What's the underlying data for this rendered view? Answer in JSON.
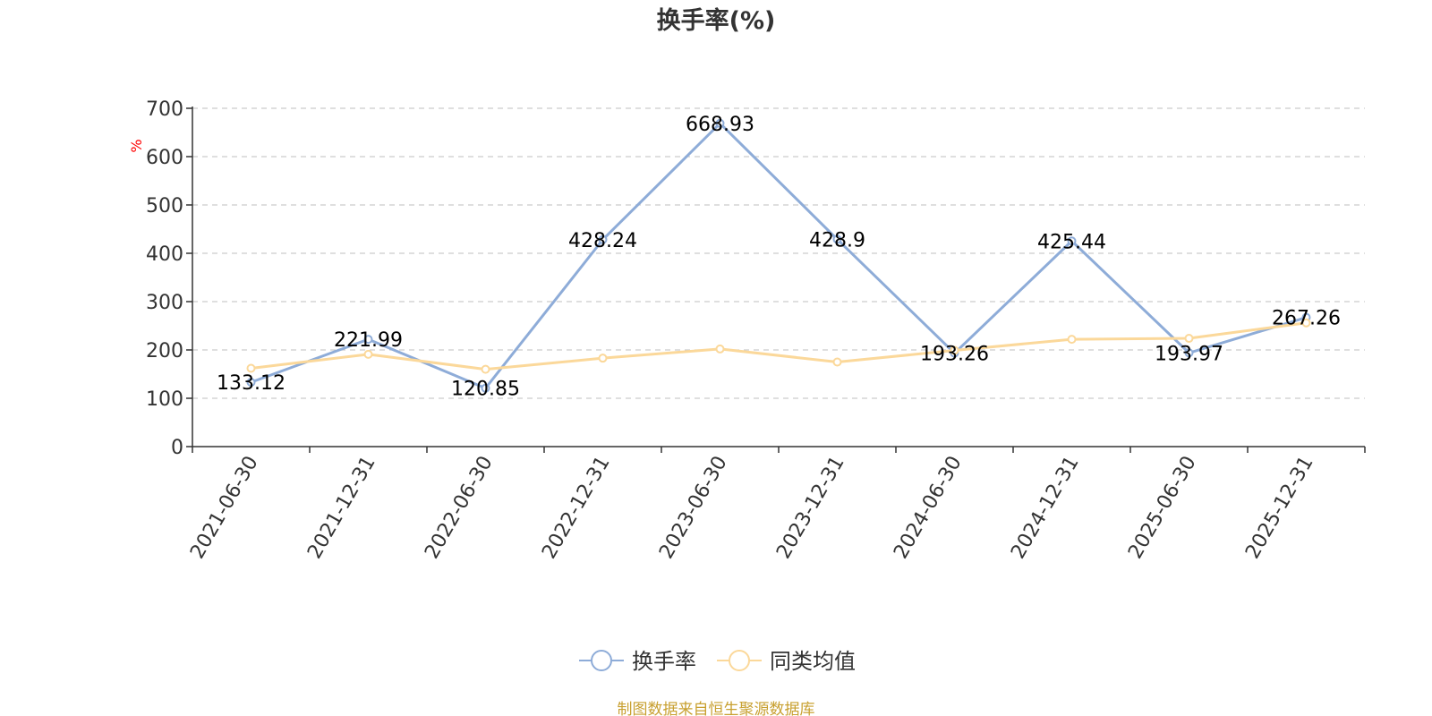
{
  "chart_data": {
    "type": "line",
    "title": "换手率(%)",
    "ylabel": "%",
    "ylim": [
      0,
      700
    ],
    "yticks": [
      0,
      100,
      200,
      300,
      400,
      500,
      600,
      700
    ],
    "categories": [
      "2021-06-30",
      "2021-12-31",
      "2022-06-30",
      "2022-12-31",
      "2023-06-30",
      "2023-12-31",
      "2024-06-30",
      "2024-12-31",
      "2025-06-30",
      "2025-12-31"
    ],
    "series": [
      {
        "name": "换手率",
        "color": "#8eacd8",
        "values": [
          133.12,
          221.99,
          120.85,
          428.24,
          668.93,
          428.9,
          193.26,
          425.44,
          193.97,
          267.26
        ],
        "labels": [
          "133.12",
          "221.99",
          "120.85",
          "428.24",
          "668.93",
          "428.9",
          "193.26",
          "425.44",
          "193.97",
          "267.26"
        ]
      },
      {
        "name": "同类均值",
        "color": "#fbd89a",
        "values": [
          162,
          191,
          160,
          183,
          202,
          175,
          199,
          222,
          224,
          256
        ]
      }
    ],
    "grid": true,
    "legend_position": "bottom-center",
    "source": "制图数据来自恒生聚源数据库"
  }
}
